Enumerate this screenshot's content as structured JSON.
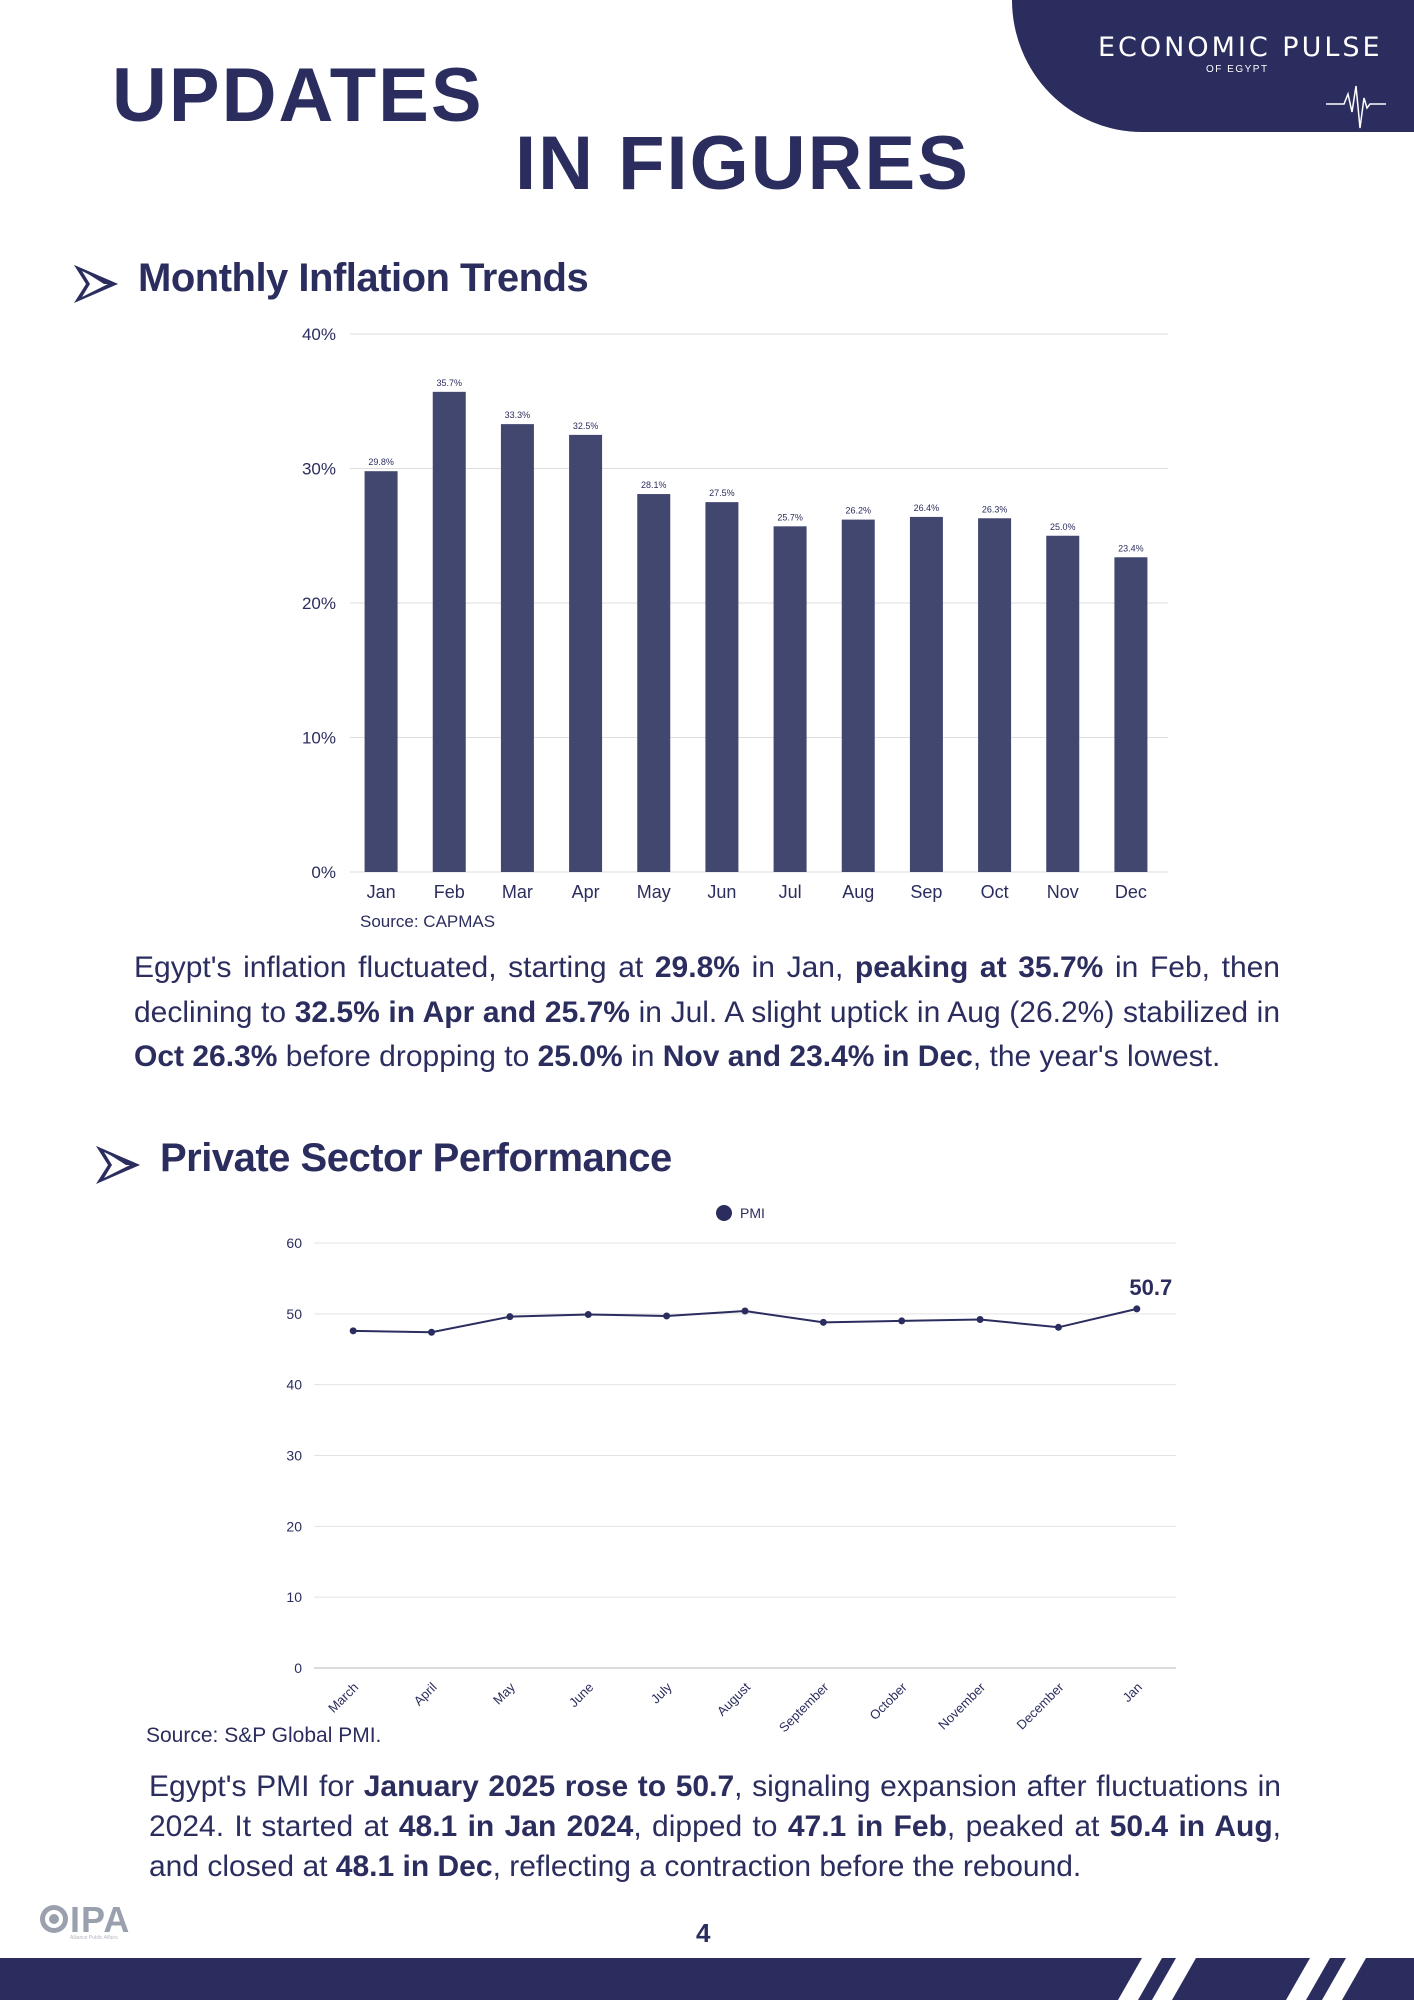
{
  "header": {
    "brand": "ECONOMIC PULSE",
    "brand_sub": "OF EGYPT",
    "title_line1": "UPDATES",
    "title_line2": "IN FIGURES"
  },
  "section1": {
    "heading": "Monthly Inflation Trends",
    "source": "Source: CAPMAS",
    "paragraph_html": "Egypt's inflation fluctuated, starting at <b>29.8%</b> in Jan, <b>peaking at 35.7%</b> in Feb, then declining to <b>32.5% in Apr and 25.7%</b> in Jul. A slight uptick in Aug (26.2%) stabilized in <b>Oct 26.3%</b> before dropping to <b>25.0%</b> in <b>Nov and 23.4% in Dec</b>, the year's lowest."
  },
  "section2": {
    "heading": "Private Sector Performance",
    "source": "Source: S&P Global PMI.",
    "paragraph_html": "Egypt's PMI for <b>January 2025 rose to 50.7</b>, signaling expansion after fluctuations in 2024. It started at <b>48.1 in Jan 2024</b>, dipped to <b>47.1 in Feb</b>, peaked at <b>50.4 in Aug</b>, and closed at <b>48.1 in Dec</b>, reflecting a contraction before the rebound."
  },
  "footer": {
    "page_number": "4",
    "logo_text": "IPA",
    "logo_sub": "Alliance Public Affairs"
  },
  "colors": {
    "navy": "#2b2d5e",
    "bar": "#424770",
    "grid": "#dedede"
  },
  "chart_data": [
    {
      "type": "bar",
      "title": "Monthly Inflation Trends",
      "categories": [
        "Jan",
        "Feb",
        "Mar",
        "Apr",
        "May",
        "Jun",
        "Jul",
        "Aug",
        "Sep",
        "Oct",
        "Nov",
        "Dec"
      ],
      "values": [
        29.8,
        35.7,
        33.3,
        32.5,
        28.1,
        27.5,
        25.7,
        26.2,
        26.4,
        26.3,
        25.0,
        23.4
      ],
      "value_labels": [
        "29.8%",
        "35.7%",
        "33.3%",
        "32.5%",
        "28.1%",
        "27.5%",
        "25.7%",
        "26.2%",
        "26.4%",
        "26.3%",
        "25.0%",
        "23.4%"
      ],
      "ylim": [
        0,
        40
      ],
      "yticks": [
        0,
        10,
        20,
        30,
        40
      ],
      "ytick_labels": [
        "0%",
        "10%",
        "20%",
        "30%",
        "40%"
      ],
      "xlabel": "",
      "ylabel": "",
      "grid": true
    },
    {
      "type": "line",
      "legend": [
        "PMI"
      ],
      "categories": [
        "March",
        "April",
        "May",
        "June",
        "July",
        "August",
        "September",
        "October",
        "November",
        "December",
        "Jan"
      ],
      "series": [
        {
          "name": "PMI",
          "values": [
            47.6,
            47.4,
            49.6,
            49.9,
            49.7,
            50.4,
            48.8,
            49.0,
            49.2,
            48.1,
            50.7
          ]
        }
      ],
      "ylim": [
        0,
        60
      ],
      "yticks": [
        0,
        10,
        20,
        30,
        40,
        50,
        60
      ],
      "ytick_labels": [
        "0",
        "10",
        "20",
        "30",
        "40",
        "50",
        "60"
      ],
      "annotation": "50.7",
      "legend_position": "top-center",
      "grid": true
    }
  ]
}
